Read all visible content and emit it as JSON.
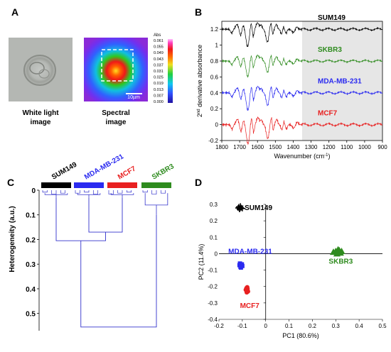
{
  "panels": {
    "A": {
      "label": "A",
      "white_light_caption": [
        "White light",
        "image"
      ],
      "spectral_caption": [
        "Spectral",
        "image"
      ],
      "colorbar_title": "Abs",
      "colorbar_ticks": [
        "0.061",
        "0.055",
        "0.049",
        "0.043",
        "0.037",
        "0.031",
        "0.025",
        "0.019",
        "0.013",
        "0.007",
        "0.000"
      ],
      "scalebar_label": "10µm"
    },
    "B": {
      "label": "B"
    },
    "C": {
      "label": "C"
    },
    "D": {
      "label": "D"
    }
  },
  "colors": {
    "SUM149": "#000000",
    "SKBR3": "#2e8b1e",
    "MDA-MB-231": "#2a2af0",
    "MCF7": "#e82020",
    "dendrogram": "#3333cc",
    "shade": "#e6e6e6"
  },
  "chart_data": [
    {
      "type": "line",
      "panel": "B",
      "xlabel": "Wavenumber (cm",
      "xlabel_sup": "-1",
      "xlabel_close": ")",
      "ylabel_pre": "2",
      "ylabel_sup": "nd",
      "ylabel_post": " derivative absorbance",
      "xlim": [
        1800,
        900
      ],
      "ylim": [
        -0.2,
        1.3
      ],
      "xticks": [
        1800,
        1700,
        1600,
        1500,
        1400,
        1300,
        1200,
        1100,
        1000,
        900
      ],
      "yticks": [
        -0.2,
        0,
        0.2,
        0.4,
        0.6,
        0.8,
        1,
        1.2
      ],
      "ytick_labels": [
        "-0.2",
        "0",
        "0.2",
        "0.4",
        "0.6",
        "0.8",
        "1",
        "1.2"
      ],
      "shaded_region": [
        1350,
        900
      ],
      "series": [
        {
          "name": "SUM149",
          "baseline": 1.2,
          "scale": 1.0
        },
        {
          "name": "SKBR3",
          "baseline": 0.8,
          "scale": 0.9
        },
        {
          "name": "MDA-MB-231",
          "baseline": 0.4,
          "scale": 1.0
        },
        {
          "name": "MCF7",
          "baseline": 0.0,
          "scale": 1.1
        }
      ]
    },
    {
      "type": "dendrogram",
      "panel": "C",
      "ylabel": "Heterogeneity (a.u.)",
      "ylim": [
        0,
        0.57
      ],
      "yticks": [
        0,
        0.1,
        0.2,
        0.3,
        0.4,
        0.5
      ],
      "ytick_labels": [
        "0",
        "0.1",
        "0.2",
        "0.3",
        "0.4",
        "0.5"
      ],
      "groups": [
        {
          "name": "SUM149",
          "leaves": 7
        },
        {
          "name": "MDA-MB-231",
          "leaves": 7
        },
        {
          "name": "MCF7",
          "leaves": 7
        },
        {
          "name": "SKBR3",
          "leaves": 7
        }
      ],
      "merges": [
        {
          "left": "MDA-MB-231",
          "right": "MCF7",
          "height": 0.17
        },
        {
          "left": "SUM149",
          "right": "MDA-MB-231+MCF7",
          "height": 0.205
        },
        {
          "left": "SUM149+MDA-MB-231+MCF7",
          "right": "SKBR3",
          "height": 0.555
        }
      ]
    },
    {
      "type": "scatter",
      "panel": "D",
      "xlabel": "PC1 (80.6%)",
      "ylabel": "PC2 (11.4%)",
      "xlim": [
        -0.2,
        0.5
      ],
      "ylim": [
        -0.4,
        0.3
      ],
      "xticks": [
        -0.2,
        -0.1,
        0,
        0.1,
        0.2,
        0.3,
        0.4,
        0.5
      ],
      "xtick_labels": [
        "-0.2",
        "-0.1",
        "0",
        "0.1",
        "0.2",
        "0.3",
        "0.4",
        "0.5"
      ],
      "yticks": [
        -0.4,
        -0.3,
        -0.2,
        -0.1,
        0,
        0.1,
        0.2,
        0.3
      ],
      "ytick_labels": [
        "-0.4",
        "-0.3",
        "-0.2",
        "-0.1",
        "0",
        "0.1",
        "0.2",
        "0.3"
      ],
      "series": [
        {
          "name": "SUM149",
          "marker": "plus",
          "center": [
            -0.11,
            0.28
          ],
          "points": [
            [
              -0.115,
              0.285
            ],
            [
              -0.11,
              0.275
            ],
            [
              -0.105,
              0.28
            ],
            [
              -0.112,
              0.27
            ],
            [
              -0.108,
              0.29
            ],
            [
              -0.118,
              0.278
            ],
            [
              -0.1,
              0.275
            ]
          ]
        },
        {
          "name": "MDA-MB-231",
          "marker": "square",
          "center": [
            -0.105,
            -0.07
          ],
          "points": [
            [
              -0.11,
              -0.06
            ],
            [
              -0.105,
              -0.07
            ],
            [
              -0.1,
              -0.075
            ],
            [
              -0.108,
              -0.08
            ],
            [
              -0.102,
              -0.065
            ],
            [
              -0.106,
              -0.085
            ],
            [
              -0.112,
              -0.07
            ]
          ]
        },
        {
          "name": "MCF7",
          "marker": "circle",
          "center": [
            -0.08,
            -0.22
          ],
          "points": [
            [
              -0.082,
              -0.21
            ],
            [
              -0.078,
              -0.215
            ],
            [
              -0.08,
              -0.225
            ],
            [
              -0.085,
              -0.22
            ],
            [
              -0.076,
              -0.23
            ],
            [
              -0.081,
              -0.235
            ],
            [
              -0.079,
              -0.205
            ]
          ]
        },
        {
          "name": "SKBR3",
          "marker": "triangle",
          "center": [
            0.31,
            0.01
          ],
          "points": [
            [
              0.29,
              0.01
            ],
            [
              0.3,
              0.015
            ],
            [
              0.315,
              0.02
            ],
            [
              0.32,
              0.005
            ],
            [
              0.305,
              0.0
            ],
            [
              0.325,
              0.015
            ],
            [
              0.31,
              0.025
            ]
          ]
        }
      ]
    }
  ]
}
